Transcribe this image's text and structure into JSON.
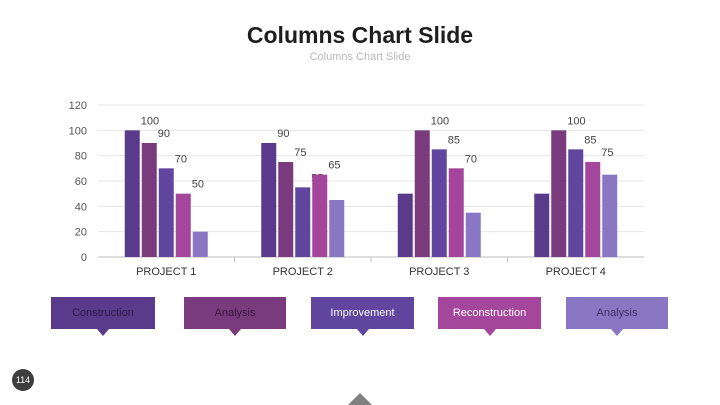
{
  "slide": {
    "title": "Columns Chart Slide",
    "subtitle": "Columns Chart Slide",
    "page_number": "114"
  },
  "chart_data": {
    "type": "bar",
    "title": "",
    "xlabel": "",
    "ylabel": "",
    "ylim": [
      0,
      120
    ],
    "yticks": [
      "0",
      "20",
      "40",
      "60",
      "80",
      "100",
      "120"
    ],
    "grid": true,
    "categories": [
      "PROJECT 1",
      "PROJECT 2",
      "PROJECT 3",
      "PROJECT 4"
    ],
    "series": [
      {
        "values": [
          100,
          90,
          50,
          50
        ],
        "data_labels": [
          "100",
          "90",
          "",
          ""
        ],
        "color": "#5a3a8a"
      },
      {
        "values": [
          90,
          75,
          100,
          100
        ],
        "data_labels": [
          "90",
          "75",
          "100",
          "100"
        ],
        "color": "#7a3a7e"
      },
      {
        "values": [
          70,
          55,
          85,
          85
        ],
        "data_labels": [
          "70",
          "55",
          "85",
          "85"
        ],
        "color": "#6146a0"
      },
      {
        "values": [
          50,
          65,
          70,
          75
        ],
        "data_labels": [
          "50",
          "65",
          "70",
          "75"
        ],
        "color": "#a4479c"
      },
      {
        "values": [
          20,
          45,
          35,
          65
        ],
        "data_labels": [
          "",
          "",
          "",
          ""
        ],
        "color": "#8a77c4"
      }
    ]
  },
  "legend": [
    {
      "label": "Construction",
      "color": "#5a3a8a",
      "text_color": "#2b1b45"
    },
    {
      "label": "Analysis",
      "color": "#7a3a7e",
      "text_color": "#3a1a3c"
    },
    {
      "label": "Improvement",
      "color": "#6146a0",
      "text_color": "#ffffff"
    },
    {
      "label": "Reconstruction",
      "color": "#a4479c",
      "text_color": "#ffffff"
    },
    {
      "label": "Analysis",
      "color": "#8a77c4",
      "text_color": "#3d3366"
    }
  ]
}
